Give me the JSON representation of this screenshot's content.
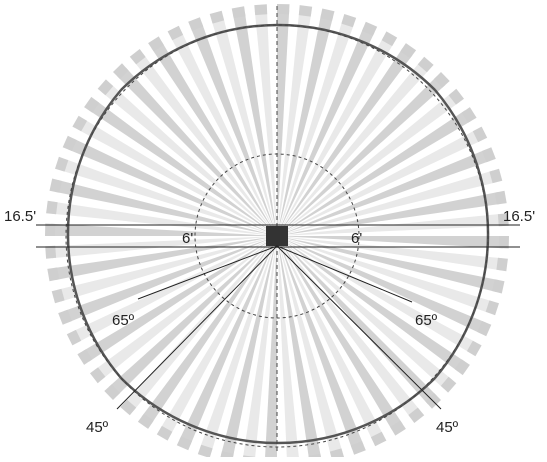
{
  "diagram": {
    "labels": {
      "outer_left": "16.5'",
      "outer_right": "16.5'",
      "inner_left": "6'",
      "inner_right": "6'",
      "angle_65_left": "65º",
      "angle_65_right": "65º",
      "angle_45_left": "45º",
      "angle_45_right": "45º"
    },
    "colors": {
      "background": "#ffffff",
      "ray_light": "#e9e9e9",
      "ray_dark": "#d2d2d2",
      "outer_ring": "#555555",
      "sensor": "#333333",
      "line": "#222222",
      "dashed": "#444444"
    }
  }
}
